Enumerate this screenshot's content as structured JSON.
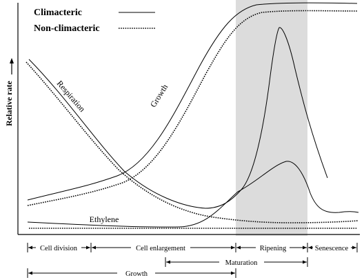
{
  "legend": {
    "climacteric": "Climacteric",
    "non_climacteric": "Non-climacteric"
  },
  "axis": {
    "y_label": "Relative rate"
  },
  "curve_labels": {
    "respiration": "Respiration",
    "growth": "Growth",
    "ethylene": "Ethylene"
  },
  "stages": {
    "cell_division": "Cell division",
    "cell_enlargement": "Cell enlargement",
    "ripening": "Ripening",
    "senescence": "Senescence",
    "maturation": "Maturation",
    "growth": "Growth"
  },
  "colors": {
    "line": "#000000",
    "shade": "#dcdcdc"
  }
}
